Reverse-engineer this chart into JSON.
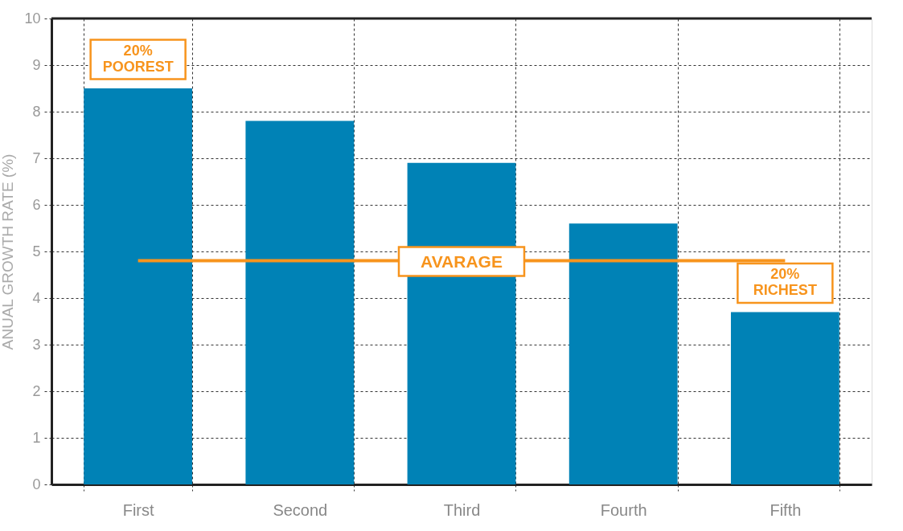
{
  "chart_data": {
    "type": "bar",
    "ylabel": "ANUAL GROWTH RATE (%)",
    "categories": [
      "First",
      "Second",
      "Third",
      "Fourth",
      "Fifth"
    ],
    "values": [
      8.5,
      7.8,
      6.9,
      5.6,
      3.7
    ],
    "color": "#0082b6",
    "ylim": [
      0,
      10
    ],
    "yticks": [
      0,
      1,
      2,
      3,
      4,
      5,
      6,
      7,
      8,
      9,
      10
    ],
    "grid": true,
    "ref_lines": [
      {
        "axis": "y",
        "value": 4.8,
        "label": "AVARAGE",
        "color": "#f7941d",
        "line_style": "solid"
      }
    ],
    "annotations": [
      {
        "text": "20% POOREST",
        "x": "First",
        "y": 8.5
      },
      {
        "text": "20% RICHEST",
        "x": "Fifth",
        "y": 3.7
      }
    ]
  }
}
